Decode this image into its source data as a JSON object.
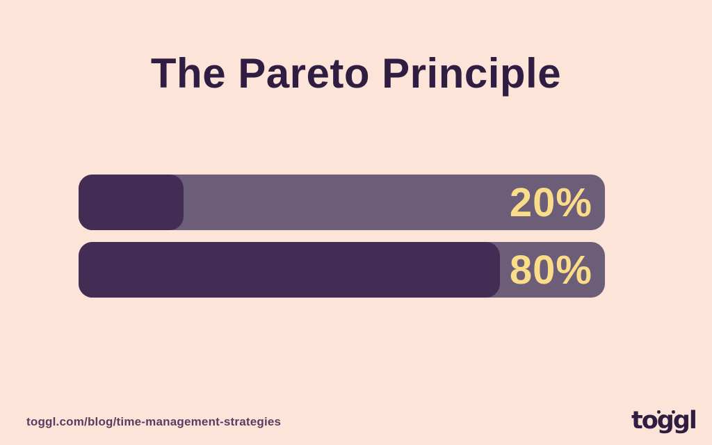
{
  "title": "The Pareto Principle",
  "chart_data": {
    "type": "bar",
    "orientation": "horizontal",
    "title": "The Pareto Principle",
    "values": [
      20,
      80
    ],
    "labels": [
      "20%",
      "80%"
    ],
    "xlim": [
      0,
      100
    ],
    "grid": false,
    "legend": false
  },
  "bars": [
    {
      "percent": 20,
      "label": "20%"
    },
    {
      "percent": 80,
      "label": "80%"
    }
  ],
  "footer": {
    "url": "toggl.com/blog/time-management-strategies",
    "logo_text": "toggl"
  },
  "colors": {
    "background": "#fce4d9",
    "title_text": "#2f1e41",
    "bar_track": "#6c5e78",
    "bar_fill": "#442d54",
    "percent_label": "#fbdc88",
    "url_text": "#5a3c61",
    "logo_text": "#2f1e41"
  }
}
